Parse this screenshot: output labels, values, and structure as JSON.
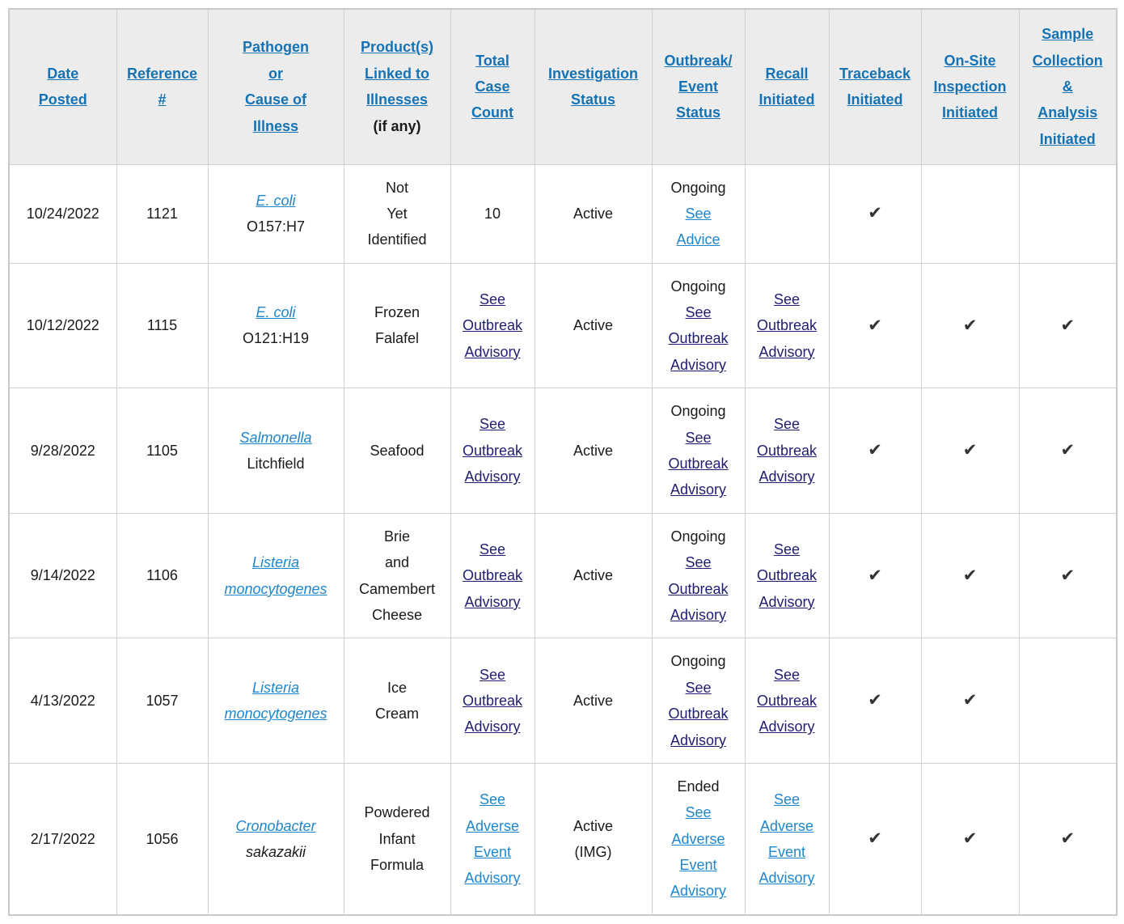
{
  "colors": {
    "header_link": "#1673b3",
    "link_blue": "#1f86cc",
    "link_navy": "#1e1e70",
    "text": "#1a1a1a",
    "header_bg": "#ececec",
    "border": "#d0d0d0",
    "check": "#333333"
  },
  "check_glyph": "✔",
  "table": {
    "columns": [
      {
        "id": "date",
        "label": "Date\nPosted"
      },
      {
        "id": "reference",
        "label": "Reference\n#"
      },
      {
        "id": "pathogen",
        "label": "Pathogen\nor\nCause of\nIllness"
      },
      {
        "id": "product",
        "label": "Product(s)\nLinked to\nIllnesses",
        "suffix": "(if any)"
      },
      {
        "id": "case-count",
        "label": "Total\nCase\nCount"
      },
      {
        "id": "investigation",
        "label": "Investigation\nStatus"
      },
      {
        "id": "outbreak",
        "label": "Outbreak/\nEvent\nStatus"
      },
      {
        "id": "recall",
        "label": "Recall\nInitiated"
      },
      {
        "id": "traceback",
        "label": "Traceback\nInitiated"
      },
      {
        "id": "onsite",
        "label": "On-Site\nInspection\nInitiated"
      },
      {
        "id": "sample",
        "label": "Sample\nCollection\n&\nAnalysis\nInitiated"
      }
    ],
    "rows": [
      {
        "date": "10/24/2022",
        "reference": "1121",
        "pathogen_link": "E. coli",
        "pathogen_rest": "O157:H7",
        "pathogen_rest_italic": false,
        "product": "Not\nYet\nIdentified",
        "case_count_text": "10",
        "case_count_link": null,
        "case_count_link_style": null,
        "investigation": "Active",
        "outbreak_prefix": "Ongoing",
        "outbreak_link": "See\nAdvice",
        "outbreak_link_style": "blue",
        "recall_link": null,
        "recall_link_style": null,
        "traceback": true,
        "onsite": false,
        "sample": false
      },
      {
        "date": "10/12/2022",
        "reference": "1115",
        "pathogen_link": "E. coli",
        "pathogen_rest": "O121:H19",
        "pathogen_rest_italic": false,
        "product": "Frozen\nFalafel",
        "case_count_text": null,
        "case_count_link": "See\nOutbreak\nAdvisory",
        "case_count_link_style": "navy",
        "investigation": "Active",
        "outbreak_prefix": "Ongoing",
        "outbreak_link": "See\nOutbreak\nAdvisory",
        "outbreak_link_style": "navy",
        "recall_link": "See\nOutbreak\nAdvisory",
        "recall_link_style": "navy",
        "traceback": true,
        "onsite": true,
        "sample": true
      },
      {
        "date": "9/28/2022",
        "reference": "1105",
        "pathogen_link": "Salmonella",
        "pathogen_rest": "Litchfield",
        "pathogen_rest_italic": false,
        "product": "Seafood",
        "case_count_text": null,
        "case_count_link": "See\nOutbreak\nAdvisory",
        "case_count_link_style": "navy",
        "investigation": "Active",
        "outbreak_prefix": "Ongoing",
        "outbreak_link": "See\nOutbreak\nAdvisory",
        "outbreak_link_style": "navy",
        "recall_link": "See\nOutbreak\nAdvisory",
        "recall_link_style": "navy",
        "traceback": true,
        "onsite": true,
        "sample": true
      },
      {
        "date": "9/14/2022",
        "reference": "1106",
        "pathogen_link": "Listeria\nmonocytogenes",
        "pathogen_rest": null,
        "pathogen_rest_italic": false,
        "product": "Brie\nand\nCamembert\nCheese",
        "case_count_text": null,
        "case_count_link": "See\nOutbreak\nAdvisory",
        "case_count_link_style": "navy",
        "investigation": "Active",
        "outbreak_prefix": "Ongoing",
        "outbreak_link": "See\nOutbreak\nAdvisory",
        "outbreak_link_style": "navy",
        "recall_link": "See\nOutbreak\nAdvisory",
        "recall_link_style": "navy",
        "traceback": true,
        "onsite": true,
        "sample": true
      },
      {
        "date": "4/13/2022",
        "reference": "1057",
        "pathogen_link": "Listeria\nmonocytogenes",
        "pathogen_rest": null,
        "pathogen_rest_italic": false,
        "product": "Ice\nCream",
        "case_count_text": null,
        "case_count_link": "See\nOutbreak\nAdvisory",
        "case_count_link_style": "navy",
        "investigation": "Active",
        "outbreak_prefix": "Ongoing",
        "outbreak_link": "See\nOutbreak\nAdvisory",
        "outbreak_link_style": "navy",
        "recall_link": "See\nOutbreak\nAdvisory",
        "recall_link_style": "navy",
        "traceback": true,
        "onsite": true,
        "sample": false
      },
      {
        "date": "2/17/2022",
        "reference": "1056",
        "pathogen_link": "Cronobacter",
        "pathogen_rest": "sakazakii",
        "pathogen_rest_italic": true,
        "product": "Powdered\nInfant\nFormula",
        "case_count_text": null,
        "case_count_link": "See\nAdverse\nEvent\nAdvisory",
        "case_count_link_style": "blue",
        "investigation": "Active\n(IMG)",
        "outbreak_prefix": "Ended",
        "outbreak_link": "See\nAdverse\nEvent\nAdvisory",
        "outbreak_link_style": "blue",
        "recall_link": "See\nAdverse\nEvent\nAdvisory",
        "recall_link_style": "blue",
        "traceback": true,
        "onsite": true,
        "sample": true
      }
    ]
  }
}
